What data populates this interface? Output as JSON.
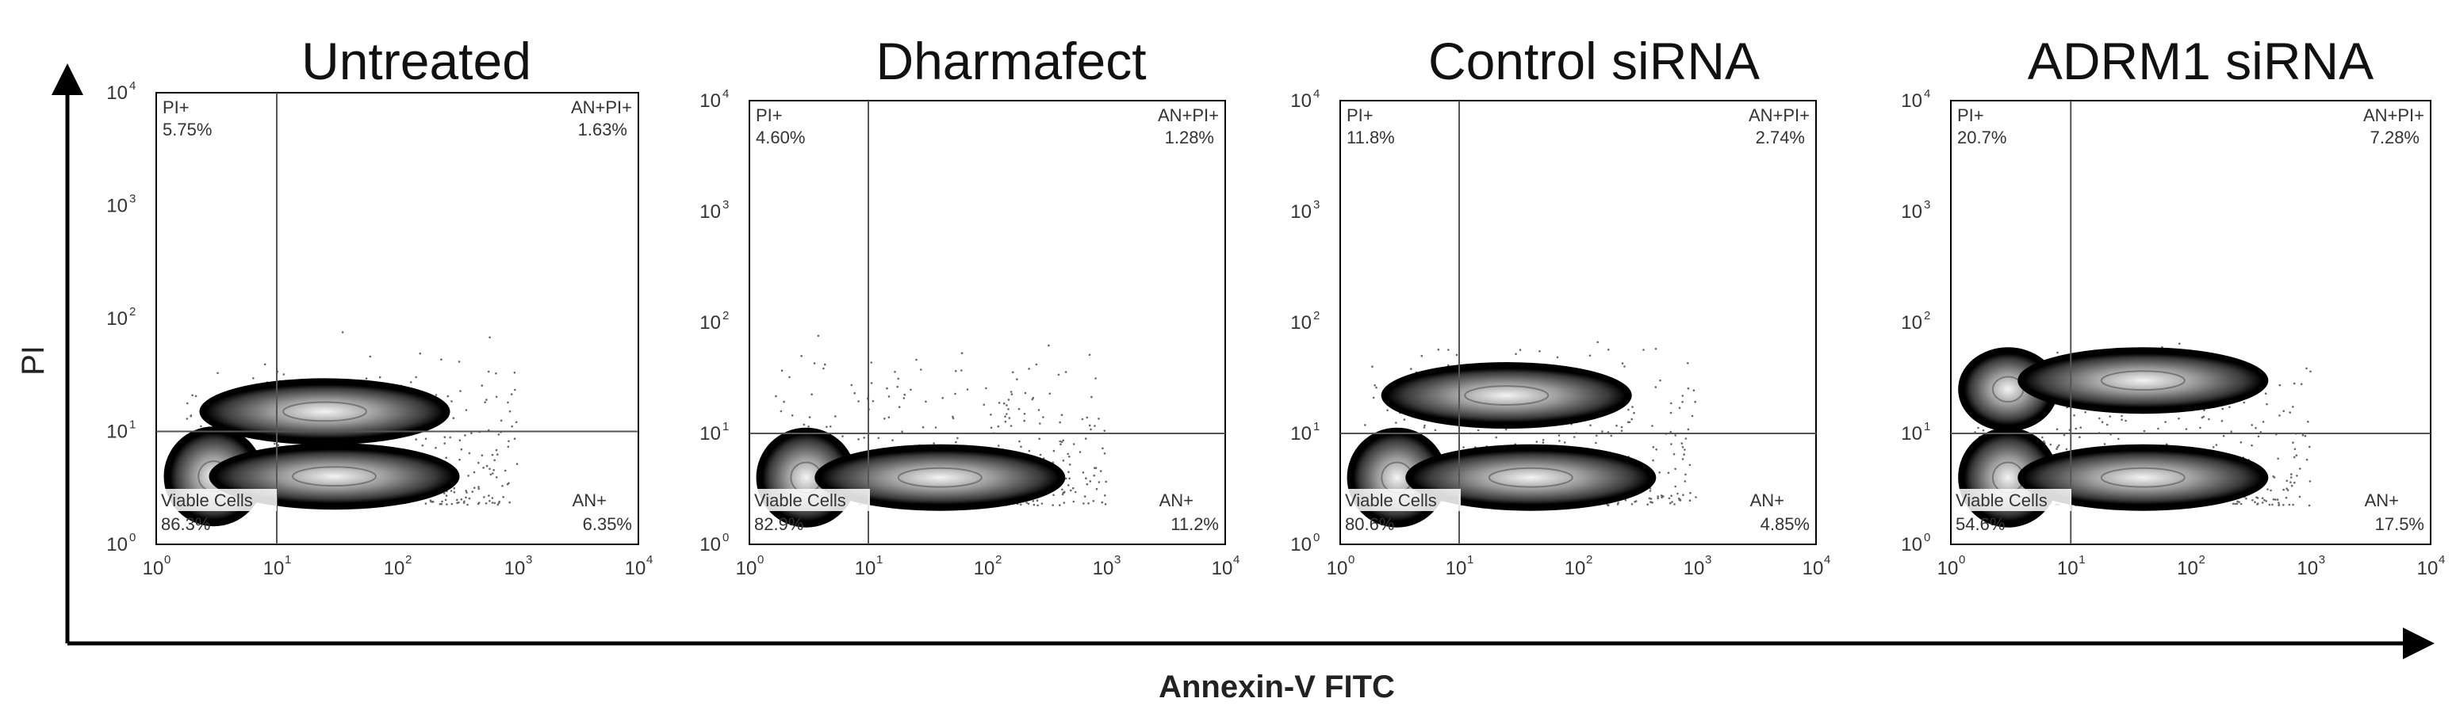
{
  "chart_data": {
    "type": "scatter",
    "subtype": "flow-cytometry-density-contour",
    "xlabel": "Annexin-V FITC",
    "ylabel": "PI",
    "xscale": "log",
    "yscale": "log",
    "xlim": [
      1,
      10000
    ],
    "ylim": [
      1,
      10000
    ],
    "gate": {
      "x": 10,
      "y": 10
    },
    "x_ticks": [
      "10",
      "10",
      "10",
      "10",
      "10"
    ],
    "x_tick_exponents": [
      "0",
      "1",
      "2",
      "3",
      "4"
    ],
    "y_ticks": [
      "10",
      "10",
      "10",
      "10",
      "10"
    ],
    "y_tick_exponents": [
      "0",
      "1",
      "2",
      "3",
      "4"
    ],
    "grid": false,
    "colors": {
      "density_low": "#f2f2f2",
      "density_high": "#000000",
      "dots": "#555555",
      "frame": "#000000"
    },
    "panels": [
      {
        "title": "Untreated",
        "quadrants": {
          "pi_pos": {
            "label": "PI+",
            "value": "5.75%"
          },
          "an_pi_pos": {
            "label": "AN+PI+",
            "value": "1.63%"
          },
          "viable": {
            "label": "Viable Cells",
            "value": "86.3%"
          },
          "an_pos": {
            "label": "AN+",
            "value": "6.35%"
          }
        },
        "populations": [
          {
            "x": 3.0,
            "y": 4.0
          },
          {
            "x": 30,
            "y": 4.0
          },
          {
            "x": 25,
            "y": 15
          }
        ]
      },
      {
        "title": "Dharmafect",
        "quadrants": {
          "pi_pos": {
            "label": "PI+",
            "value": "4.60%"
          },
          "an_pi_pos": {
            "label": "AN+PI+",
            "value": "1.28%"
          },
          "viable": {
            "label": "Viable Cells",
            "value": "82.9%"
          },
          "an_pos": {
            "label": "AN+",
            "value": "11.2%"
          }
        },
        "populations": [
          {
            "x": 3.0,
            "y": 4.0
          },
          {
            "x": 40,
            "y": 4.0
          }
        ]
      },
      {
        "title": "Control siRNA",
        "quadrants": {
          "pi_pos": {
            "label": "PI+",
            "value": "11.8%"
          },
          "an_pi_pos": {
            "label": "AN+PI+",
            "value": "2.74%"
          },
          "viable": {
            "label": "Viable Cells",
            "value": "80.6%"
          },
          "an_pos": {
            "label": "AN+",
            "value": "4.85%"
          }
        },
        "populations": [
          {
            "x": 3.0,
            "y": 4.0
          },
          {
            "x": 40,
            "y": 4.0
          },
          {
            "x": 25,
            "y": 22
          }
        ]
      },
      {
        "title": "ADRM1 siRNA",
        "quadrants": {
          "pi_pos": {
            "label": "PI+",
            "value": "20.7%"
          },
          "an_pi_pos": {
            "label": "AN+PI+",
            "value": "7.28%"
          },
          "viable": {
            "label": "Viable Cells",
            "value": "54.6%"
          },
          "an_pos": {
            "label": "AN+",
            "value": "17.5%"
          }
        },
        "populations": [
          {
            "x": 3.0,
            "y": 25
          },
          {
            "x": 3.0,
            "y": 4.0
          },
          {
            "x": 40,
            "y": 4.0
          },
          {
            "x": 40,
            "y": 30
          }
        ]
      }
    ]
  }
}
